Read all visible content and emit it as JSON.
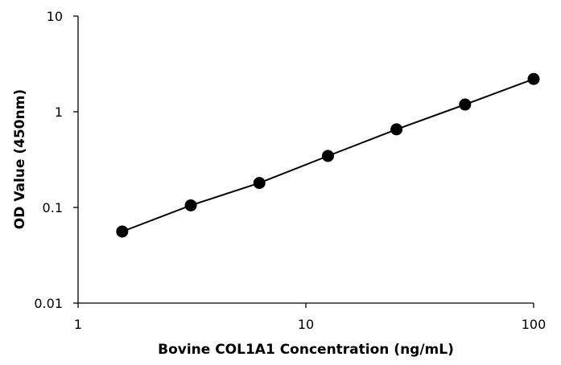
{
  "chart_data": {
    "type": "scatter",
    "title": "",
    "xlabel": "Bovine COL1A1 Concentration (ng/mL)",
    "ylabel": "OD Value (450nm)",
    "xscale": "log",
    "yscale": "log",
    "xlim": [
      1,
      100
    ],
    "ylim": [
      0.01,
      10
    ],
    "x_ticks": [
      1,
      10,
      100
    ],
    "x_tick_labels": [
      "1",
      "10",
      "100"
    ],
    "y_ticks": [
      0.01,
      0.1,
      1,
      10
    ],
    "y_tick_labels": [
      "0.01",
      "0.1",
      "1",
      "10"
    ],
    "grid": false,
    "legend": "none",
    "series": [
      {
        "x": [
          1.5625,
          3.125,
          6.25,
          12.5,
          25,
          50,
          100
        ],
        "y": [
          0.056,
          0.105,
          0.18,
          0.345,
          0.655,
          1.19,
          2.2
        ],
        "marker": "filled-circle",
        "line": "connected",
        "color": "#000000"
      }
    ]
  }
}
